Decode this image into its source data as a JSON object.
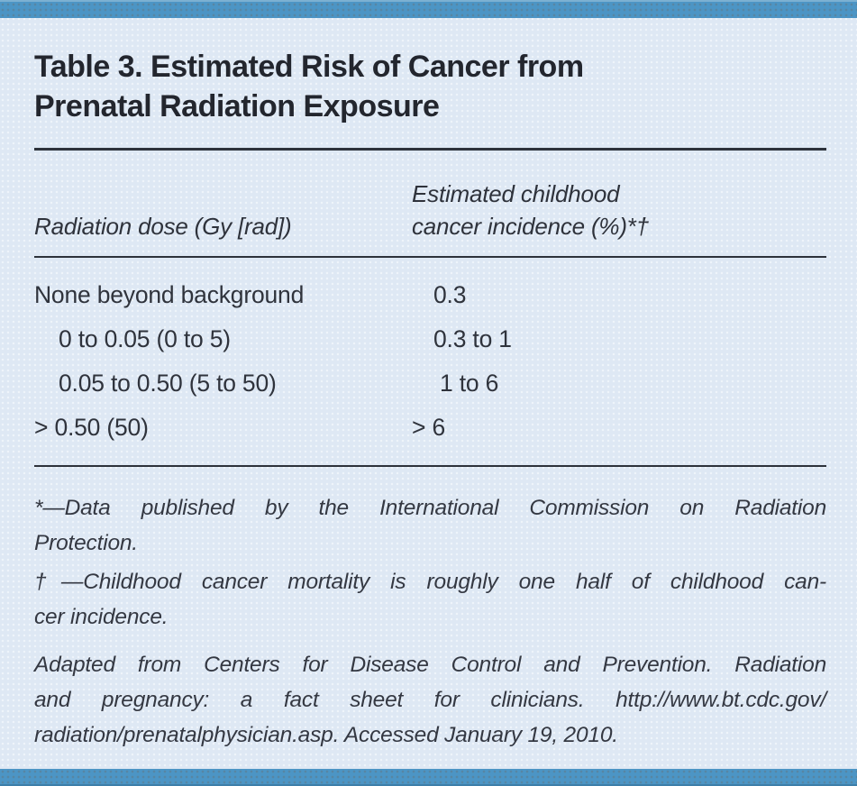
{
  "panel": {
    "title_lines": [
      "Table 3. Estimated Risk of Cancer from",
      "Prenatal Radiation Exposure"
    ],
    "colors": {
      "bar_blue": "#4c95c5",
      "panel_background": "#dee8f4",
      "title_text": "#23262e",
      "body_text": "#2f333c",
      "rule": "#2d323b"
    }
  },
  "table": {
    "columns": {
      "dose_label": "Radiation dose (Gy [rad])",
      "incidence_label_lines": [
        "Estimated childhood",
        "cancer incidence (%)*†"
      ]
    },
    "rows": [
      {
        "dose": "None beyond background",
        "incidence": "0.3"
      },
      {
        "dose": "0 to 0.05 (0 to 5)",
        "incidence": "0.3 to 1"
      },
      {
        "dose": "0.05 to 0.50 (5 to 50)",
        "incidence": "1 to 6"
      },
      {
        "dose": "> 0.50 (50)",
        "incidence": "> 6"
      }
    ]
  },
  "footnotes": {
    "asterisk_text": "*—Data published by the International Commission on Radiation Protection.",
    "asterisk_lines": [
      "*—Data published by the International Commission on Radiation",
      "Protection."
    ],
    "dagger_text": "†—Childhood cancer mortality is roughly one half of childhood cancer incidence.",
    "dagger_lines": [
      "†—Childhood cancer mortality is roughly one half of childhood can-",
      "cer incidence."
    ],
    "source_text": "Adapted from Centers for Disease Control and Prevention. Radiation and pregnancy: a fact sheet for clinicians. http://www.bt.cdc.gov/radiation/prenatalphysician.asp. Accessed January 19, 2010.",
    "source_lines": [
      "Adapted from Centers for Disease Control and Prevention. Radiation",
      "and pregnancy: a fact sheet for clinicians. http://www.bt.cdc.gov/",
      "radiation/prenatalphysician.asp. Accessed January 19, 2010."
    ]
  }
}
